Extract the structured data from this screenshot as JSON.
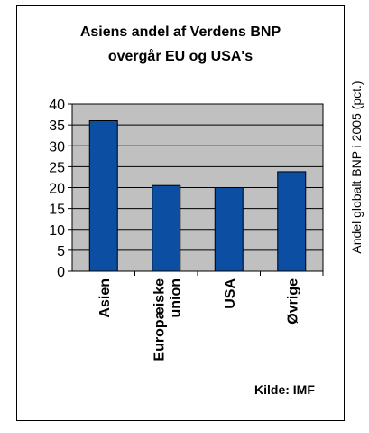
{
  "chart_data": {
    "type": "bar",
    "title_lines": [
      "Asiens andel af Verdens BNP",
      "overgår EU og USA's"
    ],
    "categories": [
      "Asien",
      "Europæiske union",
      "USA",
      "Øvrige"
    ],
    "category_label_lines": [
      [
        "Asien"
      ],
      [
        "Europæiske",
        "union"
      ],
      [
        "USA"
      ],
      [
        "Øvrige"
      ]
    ],
    "values": [
      36,
      20.5,
      20,
      23.8
    ],
    "ylabel": "Andel globalt BNP i 2005 (pct.)",
    "xlabel": "",
    "ylim": [
      0,
      40
    ],
    "yticks": [
      "0",
      "5",
      "10",
      "15",
      "20",
      "25",
      "30",
      "35",
      "40"
    ],
    "grid": true,
    "legend": "none",
    "source": "Kilde: IMF",
    "colors": {
      "bar": "#0b4ea2",
      "plot_background": "#c0c0c0",
      "gridline": "#000000"
    }
  }
}
